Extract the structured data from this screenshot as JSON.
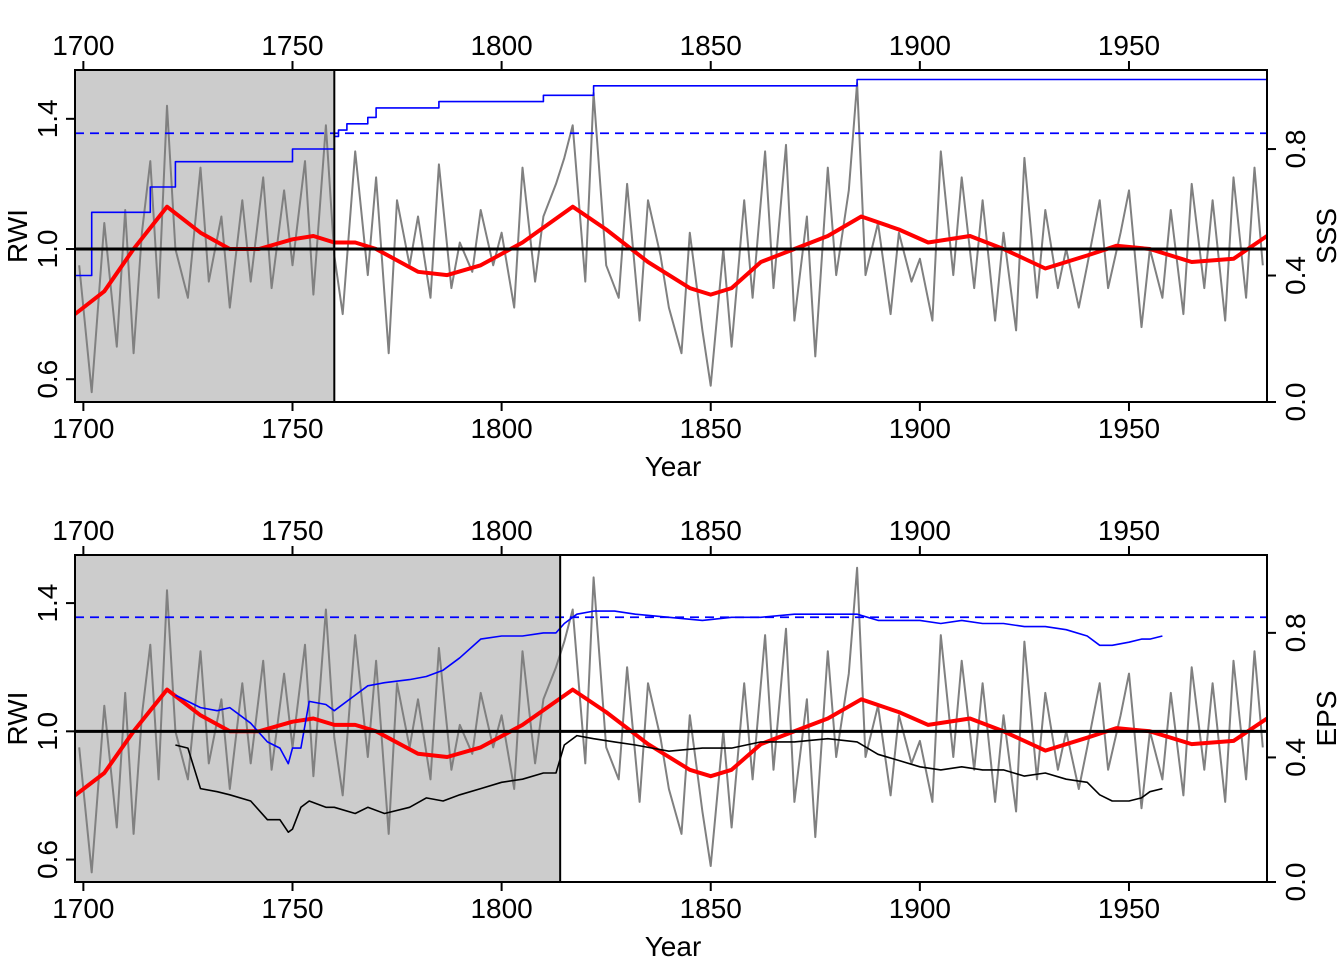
{
  "chart_data": [
    {
      "type": "line",
      "x_range": [
        1698,
        1983
      ],
      "xlabel": "Year",
      "ylabel": "RWI",
      "y_right_label": "SSS",
      "ylim": [
        0.53,
        1.55
      ],
      "y_right_lim": [
        0.0,
        1.05
      ],
      "x_ticks": [
        "1700",
        "1750",
        "1800",
        "1850",
        "1900",
        "1950"
      ],
      "y_ticks": [
        "0.6",
        "1.0",
        "1.4"
      ],
      "y_right_ticks": [
        "0.0",
        "0.4",
        "0.8"
      ],
      "reference_line": 1.0,
      "threshold": 0.85,
      "shaded_region": [
        1698,
        1760
      ],
      "grid": false,
      "colors": {
        "ring_width_index": "#808080",
        "smoothed": "#ff0000",
        "statistic": "#0000ff",
        "reference": "#000000",
        "shade": "#cccccc"
      },
      "series": [
        {
          "role": "ring_width_index",
          "x": [
            1699,
            1702,
            1705,
            1708,
            1710,
            1712,
            1714,
            1716,
            1718,
            1720,
            1722,
            1725,
            1728,
            1730,
            1733,
            1735,
            1738,
            1740,
            1743,
            1745,
            1748,
            1750,
            1753,
            1755,
            1758,
            1760,
            1762,
            1765,
            1768,
            1770,
            1773,
            1775,
            1778,
            1780,
            1783,
            1785,
            1788,
            1790,
            1793,
            1795,
            1798,
            1800,
            1803,
            1805,
            1808,
            1810,
            1813,
            1815,
            1817,
            1820,
            1822,
            1825,
            1828,
            1830,
            1833,
            1835,
            1838,
            1840,
            1843,
            1845,
            1848,
            1850,
            1853,
            1855,
            1858,
            1860,
            1863,
            1865,
            1868,
            1870,
            1873,
            1875,
            1878,
            1880,
            1883,
            1885,
            1887,
            1890,
            1893,
            1895,
            1898,
            1900,
            1903,
            1905,
            1908,
            1910,
            1913,
            1915,
            1918,
            1920,
            1923,
            1925,
            1928,
            1930,
            1933,
            1935,
            1938,
            1940,
            1943,
            1945,
            1948,
            1950,
            1953,
            1955,
            1958,
            1960,
            1963,
            1965,
            1968,
            1970,
            1973,
            1975,
            1978,
            1980,
            1982
          ],
          "values": [
            0.95,
            0.56,
            1.08,
            0.7,
            1.12,
            0.68,
            1.05,
            1.27,
            0.85,
            1.44,
            1.0,
            0.85,
            1.25,
            0.9,
            1.1,
            0.82,
            1.15,
            0.9,
            1.22,
            0.88,
            1.18,
            0.95,
            1.27,
            0.86,
            1.38,
            0.98,
            0.8,
            1.3,
            0.92,
            1.22,
            0.68,
            1.15,
            0.95,
            1.1,
            0.85,
            1.26,
            0.88,
            1.02,
            0.93,
            1.12,
            0.95,
            1.05,
            0.82,
            1.25,
            0.9,
            1.1,
            1.2,
            1.28,
            1.38,
            0.9,
            1.48,
            0.95,
            0.85,
            1.2,
            0.78,
            1.15,
            0.98,
            0.82,
            0.68,
            1.05,
            0.75,
            0.58,
            1.0,
            0.7,
            1.15,
            0.85,
            1.3,
            0.88,
            1.32,
            0.78,
            1.1,
            0.67,
            1.25,
            0.92,
            1.18,
            1.51,
            0.92,
            1.08,
            0.8,
            1.05,
            0.9,
            0.97,
            0.78,
            1.3,
            0.92,
            1.22,
            0.88,
            1.15,
            0.78,
            1.05,
            0.75,
            1.28,
            0.85,
            1.12,
            0.88,
            1.0,
            0.82,
            0.95,
            1.15,
            0.88,
            1.05,
            1.18,
            0.76,
            1.0,
            0.85,
            1.12,
            0.8,
            1.2,
            0.88,
            1.15,
            0.78,
            1.22,
            0.85,
            1.25,
            0.95
          ]
        },
        {
          "role": "smoothed",
          "x": [
            1698,
            1705,
            1712,
            1720,
            1728,
            1735,
            1742,
            1750,
            1755,
            1760,
            1765,
            1770,
            1780,
            1787,
            1795,
            1805,
            1817,
            1825,
            1835,
            1845,
            1850,
            1855,
            1862,
            1870,
            1878,
            1886,
            1895,
            1902,
            1912,
            1920,
            1930,
            1940,
            1947,
            1955,
            1965,
            1975,
            1983
          ],
          "values": [
            0.8,
            0.87,
            1.0,
            1.13,
            1.05,
            1.0,
            1.0,
            1.03,
            1.04,
            1.02,
            1.02,
            1.0,
            0.93,
            0.92,
            0.95,
            1.02,
            1.13,
            1.06,
            0.96,
            0.88,
            0.86,
            0.88,
            0.96,
            1.0,
            1.04,
            1.1,
            1.06,
            1.02,
            1.04,
            1.0,
            0.94,
            0.98,
            1.01,
            1.0,
            0.96,
            0.97,
            1.04
          ]
        },
        {
          "role": "statistic",
          "axis": "right",
          "step": true,
          "x": [
            1698,
            1700,
            1702,
            1714,
            1716,
            1720,
            1722,
            1748,
            1750,
            1759,
            1760,
            1761,
            1763,
            1768,
            1770,
            1782,
            1785,
            1805,
            1810,
            1820,
            1822,
            1882,
            1885,
            1983
          ],
          "values": [
            0.4,
            0.4,
            0.6,
            0.6,
            0.68,
            0.68,
            0.76,
            0.76,
            0.8,
            0.8,
            0.84,
            0.86,
            0.88,
            0.9,
            0.93,
            0.93,
            0.95,
            0.95,
            0.97,
            0.97,
            1.0,
            1.0,
            1.02,
            1.02
          ]
        }
      ]
    },
    {
      "type": "line",
      "x_range": [
        1698,
        1983
      ],
      "xlabel": "Year",
      "ylabel": "RWI",
      "y_right_label": "EPS",
      "ylim": [
        0.53,
        1.55
      ],
      "y_right_lim": [
        0.0,
        1.05
      ],
      "x_ticks": [
        "1700",
        "1750",
        "1800",
        "1850",
        "1900",
        "1950"
      ],
      "y_ticks": [
        "0.6",
        "1.0",
        "1.4"
      ],
      "y_right_ticks": [
        "0.0",
        "0.4",
        "0.8"
      ],
      "reference_line": 1.0,
      "threshold": 0.85,
      "shaded_region": [
        1698,
        1814
      ],
      "grid": false,
      "colors": {
        "ring_width_index": "#808080",
        "smoothed": "#ff0000",
        "statistic": "#0000ff",
        "secondary": "#000000",
        "reference": "#000000",
        "shade": "#cccccc"
      },
      "series": [
        {
          "role": "ring_width_index",
          "same_as_panel": 1,
          "x": [
            1699,
            1702,
            1705,
            1708,
            1710,
            1712,
            1714,
            1716,
            1718,
            1720,
            1722,
            1725,
            1728,
            1730,
            1733,
            1735,
            1738,
            1740,
            1743,
            1745,
            1748,
            1750,
            1753,
            1755,
            1758,
            1760,
            1762,
            1765,
            1768,
            1770,
            1773,
            1775,
            1778,
            1780,
            1783,
            1785,
            1788,
            1790,
            1793,
            1795,
            1798,
            1800,
            1803,
            1805,
            1808,
            1810,
            1813,
            1815,
            1817,
            1820,
            1822,
            1825,
            1828,
            1830,
            1833,
            1835,
            1838,
            1840,
            1843,
            1845,
            1848,
            1850,
            1853,
            1855,
            1858,
            1860,
            1863,
            1865,
            1868,
            1870,
            1873,
            1875,
            1878,
            1880,
            1883,
            1885,
            1887,
            1890,
            1893,
            1895,
            1898,
            1900,
            1903,
            1905,
            1908,
            1910,
            1913,
            1915,
            1918,
            1920,
            1923,
            1925,
            1928,
            1930,
            1933,
            1935,
            1938,
            1940,
            1943,
            1945,
            1948,
            1950,
            1953,
            1955,
            1958,
            1960,
            1963,
            1965,
            1968,
            1970,
            1973,
            1975,
            1978,
            1980,
            1982
          ],
          "values": [
            0.95,
            0.56,
            1.08,
            0.7,
            1.12,
            0.68,
            1.05,
            1.27,
            0.85,
            1.44,
            1.0,
            0.85,
            1.25,
            0.9,
            1.1,
            0.82,
            1.15,
            0.9,
            1.22,
            0.88,
            1.18,
            0.95,
            1.27,
            0.86,
            1.38,
            0.98,
            0.8,
            1.3,
            0.92,
            1.22,
            0.68,
            1.15,
            0.95,
            1.1,
            0.85,
            1.26,
            0.88,
            1.02,
            0.93,
            1.12,
            0.95,
            1.05,
            0.82,
            1.25,
            0.9,
            1.1,
            1.2,
            1.28,
            1.38,
            0.9,
            1.48,
            0.95,
            0.85,
            1.2,
            0.78,
            1.15,
            0.98,
            0.82,
            0.68,
            1.05,
            0.75,
            0.58,
            1.0,
            0.7,
            1.15,
            0.85,
            1.3,
            0.88,
            1.32,
            0.78,
            1.1,
            0.67,
            1.25,
            0.92,
            1.18,
            1.51,
            0.92,
            1.08,
            0.8,
            1.05,
            0.9,
            0.97,
            0.78,
            1.3,
            0.92,
            1.22,
            0.88,
            1.15,
            0.78,
            1.05,
            0.75,
            1.28,
            0.85,
            1.12,
            0.88,
            1.0,
            0.82,
            0.95,
            1.15,
            0.88,
            1.05,
            1.18,
            0.76,
            1.0,
            0.85,
            1.12,
            0.8,
            1.2,
            0.88,
            1.15,
            0.78,
            1.22,
            0.85,
            1.25,
            0.95
          ]
        },
        {
          "role": "smoothed",
          "x": [
            1698,
            1705,
            1712,
            1720,
            1728,
            1735,
            1742,
            1750,
            1755,
            1760,
            1765,
            1770,
            1780,
            1787,
            1795,
            1805,
            1817,
            1825,
            1835,
            1845,
            1850,
            1855,
            1862,
            1870,
            1878,
            1886,
            1895,
            1902,
            1912,
            1920,
            1930,
            1940,
            1947,
            1955,
            1965,
            1975,
            1983
          ],
          "values": [
            0.8,
            0.87,
            1.0,
            1.13,
            1.05,
            1.0,
            1.0,
            1.03,
            1.04,
            1.02,
            1.02,
            1.0,
            0.93,
            0.92,
            0.95,
            1.02,
            1.13,
            1.06,
            0.96,
            0.88,
            0.86,
            0.88,
            0.96,
            1.0,
            1.04,
            1.1,
            1.06,
            1.02,
            1.04,
            1.0,
            0.94,
            0.98,
            1.01,
            1.0,
            0.96,
            0.97,
            1.04
          ]
        },
        {
          "role": "statistic",
          "axis": "right",
          "x": [
            1722,
            1725,
            1728,
            1732,
            1735,
            1740,
            1744,
            1747,
            1749,
            1750,
            1752,
            1754,
            1758,
            1760,
            1765,
            1768,
            1772,
            1778,
            1782,
            1786,
            1790,
            1795,
            1800,
            1805,
            1810,
            1813,
            1815,
            1818,
            1822,
            1827,
            1832,
            1840,
            1848,
            1855,
            1862,
            1870,
            1878,
            1885,
            1890,
            1895,
            1900,
            1905,
            1910,
            1915,
            1920,
            1925,
            1930,
            1935,
            1940,
            1943,
            1946,
            1950,
            1953,
            1955,
            1958
          ],
          "values": [
            0.6,
            0.58,
            0.56,
            0.55,
            0.56,
            0.51,
            0.45,
            0.43,
            0.38,
            0.43,
            0.43,
            0.58,
            0.57,
            0.55,
            0.6,
            0.63,
            0.64,
            0.65,
            0.66,
            0.68,
            0.72,
            0.78,
            0.79,
            0.79,
            0.8,
            0.8,
            0.83,
            0.86,
            0.87,
            0.87,
            0.86,
            0.85,
            0.84,
            0.85,
            0.85,
            0.86,
            0.86,
            0.86,
            0.84,
            0.84,
            0.84,
            0.83,
            0.84,
            0.83,
            0.83,
            0.82,
            0.82,
            0.81,
            0.79,
            0.76,
            0.76,
            0.77,
            0.78,
            0.78,
            0.79
          ]
        },
        {
          "role": "secondary",
          "axis": "right",
          "x": [
            1722,
            1725,
            1728,
            1732,
            1735,
            1740,
            1744,
            1747,
            1749,
            1750,
            1752,
            1754,
            1758,
            1760,
            1765,
            1768,
            1772,
            1778,
            1782,
            1786,
            1790,
            1795,
            1800,
            1805,
            1810,
            1813,
            1815,
            1818,
            1822,
            1827,
            1832,
            1840,
            1848,
            1855,
            1862,
            1870,
            1878,
            1885,
            1890,
            1895,
            1900,
            1905,
            1910,
            1915,
            1920,
            1925,
            1930,
            1935,
            1940,
            1943,
            1946,
            1950,
            1953,
            1955,
            1958
          ],
          "values": [
            0.44,
            0.43,
            0.3,
            0.29,
            0.28,
            0.26,
            0.2,
            0.2,
            0.16,
            0.17,
            0.24,
            0.26,
            0.24,
            0.24,
            0.22,
            0.24,
            0.22,
            0.24,
            0.27,
            0.26,
            0.28,
            0.3,
            0.32,
            0.33,
            0.35,
            0.35,
            0.44,
            0.47,
            0.46,
            0.45,
            0.44,
            0.42,
            0.43,
            0.43,
            0.45,
            0.45,
            0.46,
            0.45,
            0.41,
            0.39,
            0.37,
            0.36,
            0.37,
            0.36,
            0.36,
            0.34,
            0.35,
            0.33,
            0.32,
            0.28,
            0.26,
            0.26,
            0.27,
            0.29,
            0.3
          ]
        }
      ]
    }
  ]
}
